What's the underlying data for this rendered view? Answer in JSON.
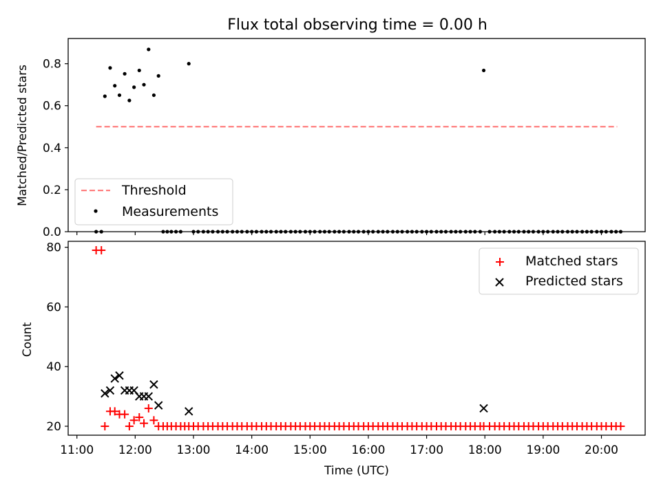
{
  "chart_data": [
    {
      "type": "scatter",
      "title": "Flux total observing time = 0.00 h",
      "xlabel": "",
      "ylabel": "Matched/Predicted stars",
      "ylim": [
        0,
        0.92
      ],
      "yticks": [
        0.0,
        0.2,
        0.4,
        0.6,
        0.8
      ],
      "ytick_labels": [
        "0.0",
        "0.2",
        "0.4",
        "0.6",
        "0.8"
      ],
      "legend_position": "lower-left",
      "series": [
        {
          "name": "Threshold",
          "kind": "line",
          "style": "dashed",
          "color": "#ff7f7f",
          "points": [
            [
              11.33,
              0.5
            ],
            [
              20.27,
              0.5
            ]
          ]
        },
        {
          "name": "Measurements",
          "kind": "scatter",
          "color": "#000000",
          "points": [
            [
              11.33,
              0.0
            ],
            [
              11.42,
              0.0
            ],
            [
              11.48,
              0.645
            ],
            [
              11.57,
              0.78
            ],
            [
              11.65,
              0.695
            ],
            [
              11.73,
              0.65
            ],
            [
              11.82,
              0.752
            ],
            [
              11.9,
              0.625
            ],
            [
              11.98,
              0.688
            ],
            [
              12.07,
              0.768
            ],
            [
              12.15,
              0.7
            ],
            [
              12.23,
              0.868
            ],
            [
              12.32,
              0.65
            ],
            [
              12.4,
              0.742
            ],
            [
              12.92,
              0.8
            ],
            [
              17.98,
              0.768
            ],
            [
              12.48,
              0.0
            ],
            [
              12.55,
              0.0
            ],
            [
              12.62,
              0.0
            ],
            [
              12.7,
              0.0
            ],
            [
              12.78,
              0.0
            ],
            [
              13.0,
              0.0
            ],
            [
              13.08,
              0.0
            ],
            [
              13.17,
              0.0
            ],
            [
              13.25,
              0.0
            ],
            [
              13.33,
              0.0
            ],
            [
              13.42,
              0.0
            ],
            [
              13.5,
              0.0
            ],
            [
              13.58,
              0.0
            ],
            [
              13.67,
              0.0
            ],
            [
              13.75,
              0.0
            ],
            [
              13.83,
              0.0
            ],
            [
              13.92,
              0.0
            ],
            [
              14.0,
              0.0
            ],
            [
              14.08,
              0.0
            ],
            [
              14.17,
              0.0
            ],
            [
              14.25,
              0.0
            ],
            [
              14.33,
              0.0
            ],
            [
              14.42,
              0.0
            ],
            [
              14.5,
              0.0
            ],
            [
              14.58,
              0.0
            ],
            [
              14.67,
              0.0
            ],
            [
              14.75,
              0.0
            ],
            [
              14.83,
              0.0
            ],
            [
              14.92,
              0.0
            ],
            [
              15.0,
              0.0
            ],
            [
              15.08,
              0.0
            ],
            [
              15.17,
              0.0
            ],
            [
              15.25,
              0.0
            ],
            [
              15.33,
              0.0
            ],
            [
              15.42,
              0.0
            ],
            [
              15.5,
              0.0
            ],
            [
              15.58,
              0.0
            ],
            [
              15.67,
              0.0
            ],
            [
              15.75,
              0.0
            ],
            [
              15.83,
              0.0
            ],
            [
              15.92,
              0.0
            ],
            [
              16.0,
              0.0
            ],
            [
              16.08,
              0.0
            ],
            [
              16.17,
              0.0
            ],
            [
              16.25,
              0.0
            ],
            [
              16.33,
              0.0
            ],
            [
              16.42,
              0.0
            ],
            [
              16.5,
              0.0
            ],
            [
              16.58,
              0.0
            ],
            [
              16.67,
              0.0
            ],
            [
              16.75,
              0.0
            ],
            [
              16.83,
              0.0
            ],
            [
              16.92,
              0.0
            ],
            [
              17.0,
              0.0
            ],
            [
              17.08,
              0.0
            ],
            [
              17.17,
              0.0
            ],
            [
              17.25,
              0.0
            ],
            [
              17.33,
              0.0
            ],
            [
              17.42,
              0.0
            ],
            [
              17.5,
              0.0
            ],
            [
              17.58,
              0.0
            ],
            [
              17.67,
              0.0
            ],
            [
              17.75,
              0.0
            ],
            [
              17.83,
              0.0
            ],
            [
              17.92,
              0.0
            ],
            [
              18.08,
              0.0
            ],
            [
              18.17,
              0.0
            ],
            [
              18.25,
              0.0
            ],
            [
              18.33,
              0.0
            ],
            [
              18.42,
              0.0
            ],
            [
              18.5,
              0.0
            ],
            [
              18.58,
              0.0
            ],
            [
              18.67,
              0.0
            ],
            [
              18.75,
              0.0
            ],
            [
              18.83,
              0.0
            ],
            [
              18.92,
              0.0
            ],
            [
              19.0,
              0.0
            ],
            [
              19.08,
              0.0
            ],
            [
              19.17,
              0.0
            ],
            [
              19.25,
              0.0
            ],
            [
              19.33,
              0.0
            ],
            [
              19.42,
              0.0
            ],
            [
              19.5,
              0.0
            ],
            [
              19.58,
              0.0
            ],
            [
              19.67,
              0.0
            ],
            [
              19.75,
              0.0
            ],
            [
              19.83,
              0.0
            ],
            [
              19.92,
              0.0
            ],
            [
              20.0,
              0.0
            ],
            [
              20.08,
              0.0
            ],
            [
              20.17,
              0.0
            ],
            [
              20.25,
              0.0
            ],
            [
              20.33,
              0.0
            ]
          ]
        }
      ]
    },
    {
      "type": "scatter",
      "title": "",
      "xlabel": "Time (UTC)",
      "ylabel": "Count",
      "xlim": [
        10.85,
        20.75
      ],
      "ylim": [
        17,
        82
      ],
      "yticks": [
        20,
        40,
        60,
        80
      ],
      "ytick_labels": [
        "20",
        "40",
        "60",
        "80"
      ],
      "xticks": [
        11,
        12,
        13,
        14,
        15,
        16,
        17,
        18,
        19,
        20
      ],
      "xtick_labels": [
        "11:00",
        "12:00",
        "13:00",
        "14:00",
        "15:00",
        "16:00",
        "17:00",
        "18:00",
        "19:00",
        "20:00"
      ],
      "legend_position": "top-right",
      "series": [
        {
          "name": "Matched stars",
          "kind": "scatter",
          "marker": "plus",
          "color": "#ff0000",
          "points": [
            [
              11.33,
              79
            ],
            [
              11.42,
              79
            ],
            [
              11.48,
              20
            ],
            [
              11.57,
              25
            ],
            [
              11.65,
              25
            ],
            [
              11.73,
              24
            ],
            [
              11.82,
              24
            ],
            [
              11.9,
              20
            ],
            [
              11.98,
              22
            ],
            [
              12.07,
              23
            ],
            [
              12.15,
              21
            ],
            [
              12.23,
              26
            ],
            [
              12.32,
              22
            ],
            [
              12.4,
              20
            ],
            [
              12.92,
              20
            ],
            [
              17.98,
              20
            ],
            [
              12.48,
              20
            ],
            [
              12.55,
              20
            ],
            [
              12.62,
              20
            ],
            [
              12.7,
              20
            ],
            [
              12.78,
              20
            ],
            [
              12.85,
              20
            ],
            [
              13.0,
              20
            ],
            [
              13.08,
              20
            ],
            [
              13.17,
              20
            ],
            [
              13.25,
              20
            ],
            [
              13.33,
              20
            ],
            [
              13.42,
              20
            ],
            [
              13.5,
              20
            ],
            [
              13.58,
              20
            ],
            [
              13.67,
              20
            ],
            [
              13.75,
              20
            ],
            [
              13.83,
              20
            ],
            [
              13.92,
              20
            ],
            [
              14.0,
              20
            ],
            [
              14.08,
              20
            ],
            [
              14.17,
              20
            ],
            [
              14.25,
              20
            ],
            [
              14.33,
              20
            ],
            [
              14.42,
              20
            ],
            [
              14.5,
              20
            ],
            [
              14.58,
              20
            ],
            [
              14.67,
              20
            ],
            [
              14.75,
              20
            ],
            [
              14.83,
              20
            ],
            [
              14.92,
              20
            ],
            [
              15.0,
              20
            ],
            [
              15.08,
              20
            ],
            [
              15.17,
              20
            ],
            [
              15.25,
              20
            ],
            [
              15.33,
              20
            ],
            [
              15.42,
              20
            ],
            [
              15.5,
              20
            ],
            [
              15.58,
              20
            ],
            [
              15.67,
              20
            ],
            [
              15.75,
              20
            ],
            [
              15.83,
              20
            ],
            [
              15.92,
              20
            ],
            [
              16.0,
              20
            ],
            [
              16.08,
              20
            ],
            [
              16.17,
              20
            ],
            [
              16.25,
              20
            ],
            [
              16.33,
              20
            ],
            [
              16.42,
              20
            ],
            [
              16.5,
              20
            ],
            [
              16.58,
              20
            ],
            [
              16.67,
              20
            ],
            [
              16.75,
              20
            ],
            [
              16.83,
              20
            ],
            [
              16.92,
              20
            ],
            [
              17.0,
              20
            ],
            [
              17.08,
              20
            ],
            [
              17.17,
              20
            ],
            [
              17.25,
              20
            ],
            [
              17.33,
              20
            ],
            [
              17.42,
              20
            ],
            [
              17.5,
              20
            ],
            [
              17.58,
              20
            ],
            [
              17.67,
              20
            ],
            [
              17.75,
              20
            ],
            [
              17.83,
              20
            ],
            [
              17.92,
              20
            ],
            [
              18.08,
              20
            ],
            [
              18.17,
              20
            ],
            [
              18.25,
              20
            ],
            [
              18.33,
              20
            ],
            [
              18.42,
              20
            ],
            [
              18.5,
              20
            ],
            [
              18.58,
              20
            ],
            [
              18.67,
              20
            ],
            [
              18.75,
              20
            ],
            [
              18.83,
              20
            ],
            [
              18.92,
              20
            ],
            [
              19.0,
              20
            ],
            [
              19.08,
              20
            ],
            [
              19.17,
              20
            ],
            [
              19.25,
              20
            ],
            [
              19.33,
              20
            ],
            [
              19.42,
              20
            ],
            [
              19.5,
              20
            ],
            [
              19.58,
              20
            ],
            [
              19.67,
              20
            ],
            [
              19.75,
              20
            ],
            [
              19.83,
              20
            ],
            [
              19.92,
              20
            ],
            [
              20.0,
              20
            ],
            [
              20.08,
              20
            ],
            [
              20.17,
              20
            ],
            [
              20.25,
              20
            ],
            [
              20.33,
              20
            ]
          ]
        },
        {
          "name": "Predicted stars",
          "kind": "scatter",
          "marker": "x",
          "color": "#000000",
          "points": [
            [
              11.48,
              31
            ],
            [
              11.57,
              32
            ],
            [
              11.65,
              36
            ],
            [
              11.73,
              37
            ],
            [
              11.82,
              32
            ],
            [
              11.9,
              32
            ],
            [
              11.98,
              32
            ],
            [
              12.07,
              30
            ],
            [
              12.15,
              30
            ],
            [
              12.23,
              30
            ],
            [
              12.32,
              34
            ],
            [
              12.4,
              27
            ],
            [
              12.92,
              25
            ],
            [
              17.98,
              26
            ]
          ]
        }
      ]
    }
  ]
}
